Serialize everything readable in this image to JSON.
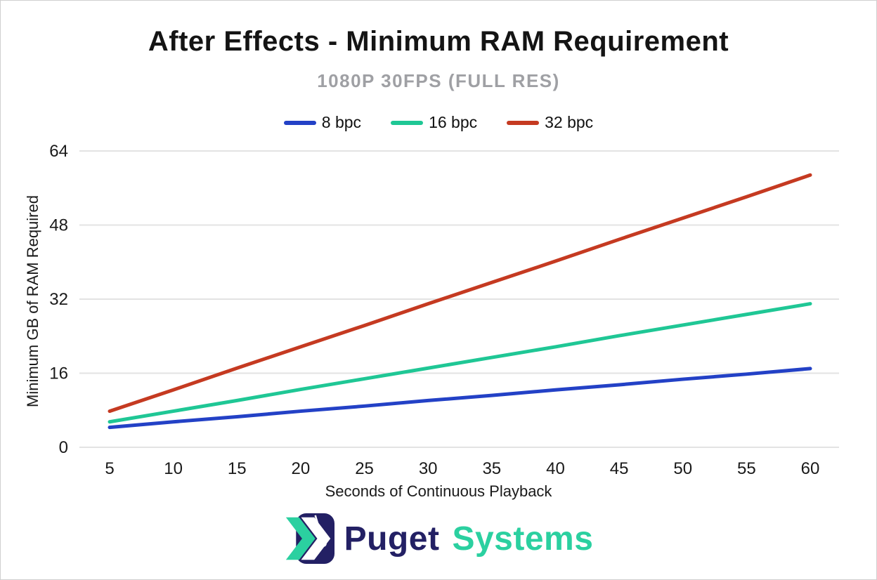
{
  "chart_data": {
    "type": "line",
    "title": "After Effects - Minimum RAM Requirement",
    "subtitle": "1080P 30FPS (FULL RES)",
    "xlabel": "Seconds of Continuous Playback",
    "ylabel": "Minimum GB of RAM Required",
    "x": [
      5,
      10,
      15,
      20,
      25,
      30,
      35,
      40,
      45,
      50,
      55,
      60
    ],
    "series": [
      {
        "name": "8 bpc",
        "color": "#2341c6",
        "values": [
          4.3,
          5.5,
          6.6,
          7.8,
          8.9,
          10.1,
          11.2,
          12.4,
          13.5,
          14.7,
          15.8,
          17.0
        ]
      },
      {
        "name": "16 bpc",
        "color": "#1fc795",
        "values": [
          5.5,
          7.8,
          10.1,
          12.5,
          14.8,
          17.1,
          19.4,
          21.7,
          24.1,
          26.4,
          28.7,
          31.0
        ]
      },
      {
        "name": "32 bpc",
        "color": "#c53a21",
        "values": [
          7.8,
          12.4,
          17.1,
          21.7,
          26.3,
          31.0,
          35.6,
          40.2,
          44.9,
          49.5,
          54.1,
          58.8
        ]
      }
    ],
    "ylim": [
      0,
      64
    ],
    "yticks": [
      0,
      16,
      32,
      48,
      64
    ],
    "grid": true,
    "legend_position": "top"
  },
  "footer": {
    "brand_first": "Puget",
    "brand_second": "Systems"
  },
  "colors": {
    "grid": "#e3e3e3",
    "tick_text": "#1a1a1a",
    "title_text": "#141414",
    "subtitle_text": "#9fa0a4",
    "brand_navy": "#232064",
    "brand_teal": "#2bd0a0"
  }
}
